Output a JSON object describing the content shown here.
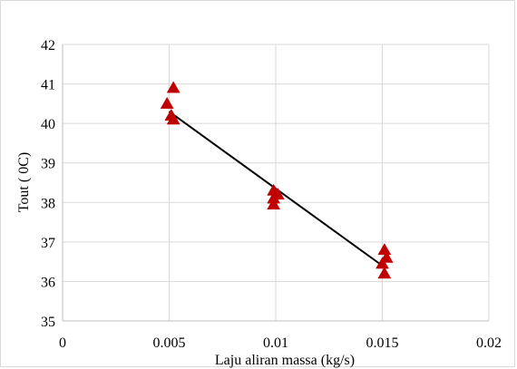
{
  "chart_data": {
    "type": "scatter",
    "xlabel": "Laju aliran massa (kg/s)",
    "ylabel": "Tout ( 0C)",
    "xlim": [
      0,
      0.02
    ],
    "ylim": [
      35,
      42
    ],
    "x_ticks": [
      "0",
      "0.005",
      "0.01",
      "0.015",
      "0.02"
    ],
    "y_ticks": [
      "35",
      "36",
      "37",
      "38",
      "39",
      "40",
      "41",
      "42"
    ],
    "grid": "vertical and horizontal",
    "legend": "none",
    "points": [
      {
        "x": 0.0049,
        "y": 40.5
      },
      {
        "x": 0.0052,
        "y": 40.9
      },
      {
        "x": 0.0051,
        "y": 40.2
      },
      {
        "x": 0.0052,
        "y": 40.1
      },
      {
        "x": 0.0099,
        "y": 38.3
      },
      {
        "x": 0.0101,
        "y": 38.2
      },
      {
        "x": 0.0099,
        "y": 38.1
      },
      {
        "x": 0.0099,
        "y": 37.95
      },
      {
        "x": 0.0151,
        "y": 36.8
      },
      {
        "x": 0.0152,
        "y": 36.6
      },
      {
        "x": 0.015,
        "y": 36.45
      },
      {
        "x": 0.0151,
        "y": 36.2
      }
    ],
    "fit_line": {
      "x": [
        0.005,
        0.015
      ],
      "y": [
        40.3,
        36.4
      ]
    },
    "marker_shape": "triangle",
    "marker_color": "#c00000",
    "line_color": "#000000",
    "grid_color": "#d9d9d9"
  }
}
